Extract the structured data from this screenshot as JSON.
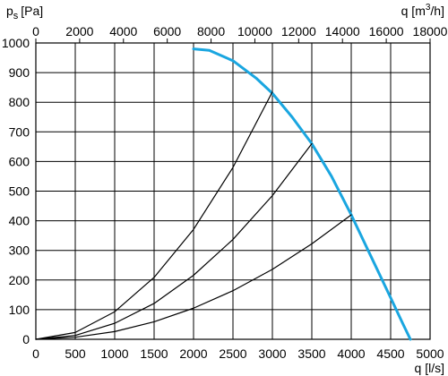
{
  "chart_data": {
    "type": "line",
    "title": "",
    "xlabel": "q [l/s]",
    "ylabel": "ps [Pa]",
    "ylabel_main": "p",
    "ylabel_sub": "s",
    "ylabel_unit": "[Pa]",
    "x2label": "q [m3/h]",
    "x2label_main": "q [m",
    "x2label_sup": "3",
    "x2label_unit": "/h]",
    "xlim": [
      0,
      5000
    ],
    "ylim": [
      0,
      1000
    ],
    "x2lim": [
      0,
      18000
    ],
    "x_ticks": [
      0,
      500,
      1000,
      1500,
      2000,
      2500,
      3000,
      3500,
      4000,
      4500,
      5000
    ],
    "y_ticks": [
      0,
      100,
      200,
      300,
      400,
      500,
      600,
      700,
      800,
      900,
      1000
    ],
    "x2_ticks": [
      0,
      2000,
      4000,
      6000,
      8000,
      10000,
      12000,
      14000,
      16000,
      18000
    ],
    "grid": true,
    "series": [
      {
        "color": "#1aa6e0",
        "x": [
          2000,
          2200,
          2500,
          2800,
          3000,
          3250,
          3500,
          3750,
          4000,
          4250,
          4500,
          4650,
          4750
        ],
        "y": [
          980,
          975,
          940,
          880,
          830,
          750,
          660,
          550,
          420,
          280,
          140,
          55,
          0
        ]
      },
      {
        "color": "#000000",
        "x": [
          0,
          500,
          1000,
          1500,
          2000,
          2500,
          3000
        ],
        "y": [
          0,
          23,
          93,
          209,
          371,
          580,
          835
        ]
      },
      {
        "color": "#000000",
        "x": [
          0,
          500,
          1000,
          1500,
          2000,
          2500,
          3000,
          3500
        ],
        "y": [
          0,
          13,
          54,
          121,
          216,
          337,
          485,
          660
        ]
      },
      {
        "color": "#000000",
        "x": [
          0,
          500,
          1000,
          1500,
          2000,
          2500,
          3000,
          3500,
          4000
        ],
        "y": [
          0,
          7,
          26,
          59,
          105,
          164,
          236,
          322,
          420
        ]
      }
    ]
  }
}
